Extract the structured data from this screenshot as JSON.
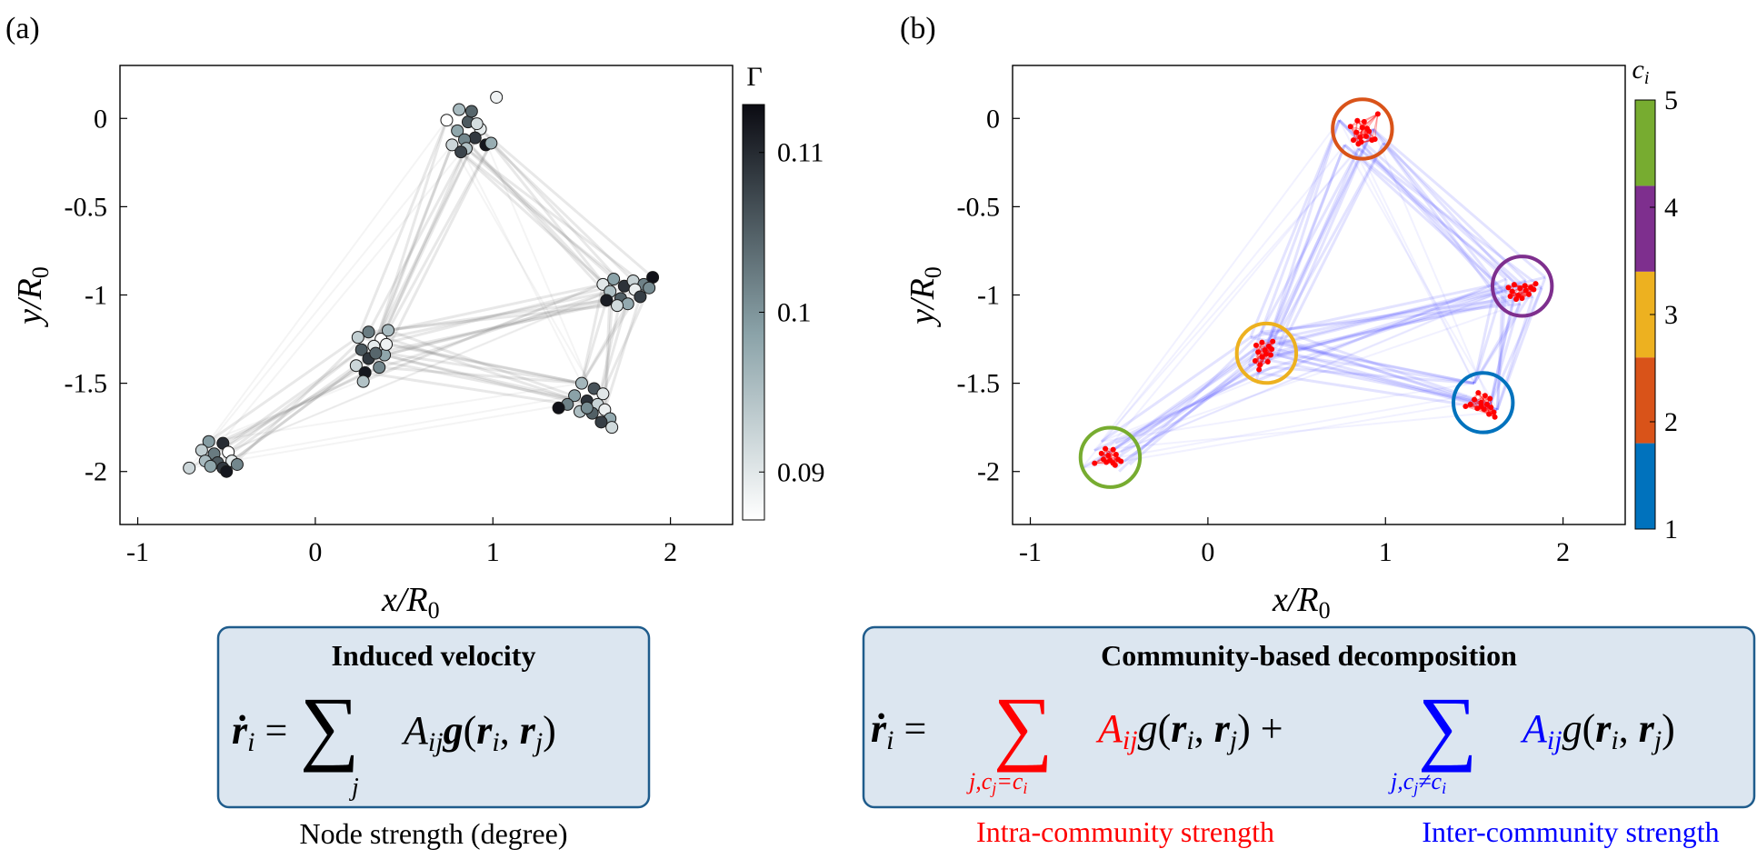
{
  "panels": {
    "a": {
      "label": "(a)"
    },
    "b": {
      "label": "(b)"
    }
  },
  "chart_data": [
    {
      "type": "scatter",
      "title": "",
      "xlabel": "x/R0",
      "ylabel": "y/R0",
      "xlim": [
        -1.1,
        2.35
      ],
      "ylim": [
        -2.3,
        0.3
      ],
      "xticks": [
        "-1",
        "0",
        "1",
        "2"
      ],
      "xtick_values": [
        -1,
        0,
        1,
        2
      ],
      "yticks": [
        "0",
        "-0.5",
        "-1",
        "-1.5",
        "-2"
      ],
      "ytick_values": [
        0,
        -0.5,
        -1,
        -1.5,
        -2
      ],
      "grid": false,
      "edges_color": "#6e6e6e",
      "clusters": [
        {
          "cx": 0.88,
          "cy": -0.09,
          "points": [
            [
              0.74,
              -0.01
            ],
            [
              0.81,
              0.05
            ],
            [
              0.86,
              -0.02
            ],
            [
              0.93,
              -0.06
            ],
            [
              0.8,
              -0.07
            ],
            [
              0.9,
              -0.11
            ],
            [
              0.77,
              -0.15
            ],
            [
              0.84,
              -0.12
            ],
            [
              0.96,
              -0.15
            ],
            [
              0.85,
              -0.17
            ],
            [
              0.88,
              0.04
            ],
            [
              1.02,
              0.12
            ],
            [
              0.99,
              -0.14
            ],
            [
              0.82,
              -0.19
            ],
            [
              0.91,
              -0.03
            ]
          ]
        },
        {
          "cx": 1.78,
          "cy": -0.98,
          "points": [
            [
              1.62,
              -0.94
            ],
            [
              1.68,
              -0.91
            ],
            [
              1.74,
              -0.95
            ],
            [
              1.79,
              -0.92
            ],
            [
              1.85,
              -0.94
            ],
            [
              1.9,
              -0.9
            ],
            [
              1.66,
              -0.98
            ],
            [
              1.72,
              -1.02
            ],
            [
              1.8,
              -0.97
            ],
            [
              1.76,
              -1.05
            ],
            [
              1.83,
              -1.01
            ],
            [
              1.7,
              -1.06
            ],
            [
              1.88,
              -0.96
            ],
            [
              1.64,
              -1.03
            ]
          ]
        },
        {
          "cx": 0.31,
          "cy": -1.34,
          "points": [
            [
              0.24,
              -1.24
            ],
            [
              0.3,
              -1.21
            ],
            [
              0.37,
              -1.25
            ],
            [
              0.41,
              -1.2
            ],
            [
              0.26,
              -1.31
            ],
            [
              0.33,
              -1.29
            ],
            [
              0.39,
              -1.34
            ],
            [
              0.3,
              -1.36
            ],
            [
              0.23,
              -1.4
            ],
            [
              0.36,
              -1.41
            ],
            [
              0.28,
              -1.44
            ],
            [
              0.27,
              -1.49
            ],
            [
              0.34,
              -1.33
            ],
            [
              0.4,
              -1.28
            ]
          ]
        },
        {
          "cx": 1.55,
          "cy": -1.62,
          "points": [
            [
              1.5,
              -1.5
            ],
            [
              1.57,
              -1.53
            ],
            [
              1.62,
              -1.56
            ],
            [
              1.46,
              -1.57
            ],
            [
              1.53,
              -1.6
            ],
            [
              1.59,
              -1.62
            ],
            [
              1.42,
              -1.62
            ],
            [
              1.37,
              -1.64
            ],
            [
              1.49,
              -1.66
            ],
            [
              1.56,
              -1.67
            ],
            [
              1.63,
              -1.65
            ],
            [
              1.66,
              -1.7
            ],
            [
              1.61,
              -1.72
            ],
            [
              1.67,
              -1.75
            ],
            [
              1.53,
              -1.64
            ]
          ]
        },
        {
          "cx": -0.55,
          "cy": -1.92,
          "points": [
            [
              -0.6,
              -1.83
            ],
            [
              -0.52,
              -1.84
            ],
            [
              -0.64,
              -1.88
            ],
            [
              -0.57,
              -1.9
            ],
            [
              -0.49,
              -1.89
            ],
            [
              -0.62,
              -1.94
            ],
            [
              -0.55,
              -1.95
            ],
            [
              -0.47,
              -1.94
            ],
            [
              -0.59,
              -1.97
            ],
            [
              -0.52,
              -1.98
            ],
            [
              -0.71,
              -1.98
            ],
            [
              -0.44,
              -1.96
            ],
            [
              -0.5,
              -2.0
            ]
          ]
        }
      ],
      "colorbar": {
        "title": "Γ",
        "range": [
          0.087,
          0.113
        ],
        "ticks": [
          "0.11",
          "0.1",
          "0.09"
        ],
        "tick_values": [
          0.11,
          0.1,
          0.09
        ],
        "color_low": "#ffffff",
        "color_mid": "#8aa2a8",
        "color_high": "#0b0b12"
      }
    },
    {
      "type": "scatter",
      "title": "",
      "xlabel": "x/R0",
      "ylabel": "y/R0",
      "xlim": [
        -1.1,
        2.35
      ],
      "ylim": [
        -2.3,
        0.3
      ],
      "xticks": [
        "-1",
        "0",
        "1",
        "2"
      ],
      "xtick_values": [
        -1,
        0,
        1,
        2
      ],
      "yticks": [
        "0",
        "-0.5",
        "-1",
        "-1.5",
        "-2"
      ],
      "ytick_values": [
        0,
        -0.5,
        -1,
        -1.5,
        -2
      ],
      "grid": false,
      "intra_color": "#ff0000",
      "inter_color": "#3a3aff",
      "communities": [
        {
          "id": 1,
          "cx": 1.55,
          "cy": -1.61,
          "r": 0.27,
          "color": "#0072bd"
        },
        {
          "id": 2,
          "cx": 0.87,
          "cy": -0.06,
          "r": 0.27,
          "color": "#d95319"
        },
        {
          "id": 3,
          "cx": 0.33,
          "cy": -1.33,
          "r": 0.27,
          "color": "#edb120"
        },
        {
          "id": 4,
          "cx": 1.77,
          "cy": -0.95,
          "r": 0.27,
          "color": "#7e2f8e"
        },
        {
          "id": 5,
          "cx": -0.55,
          "cy": -1.92,
          "r": 0.27,
          "color": "#77ac30"
        }
      ],
      "colorbar": {
        "title": "c_i",
        "ticks": [
          "5",
          "4",
          "3",
          "2",
          "1"
        ],
        "tick_values": [
          5,
          4,
          3,
          2,
          1
        ],
        "colors": [
          "#0072bd",
          "#d95319",
          "#edb120",
          "#7e2f8e",
          "#77ac30"
        ]
      }
    }
  ],
  "box_a": {
    "title": "Induced velocity",
    "caption": "Node strength (degree)"
  },
  "box_b": {
    "title": "Community-based decomposition",
    "caption_intra": "Intra-community strength",
    "caption_inter": "Inter-community strength",
    "intra_color": "#ff0000",
    "inter_color": "#0000ff"
  },
  "colors": {
    "box_fill": "#dce6f0",
    "box_border": "#1f5c8c"
  }
}
